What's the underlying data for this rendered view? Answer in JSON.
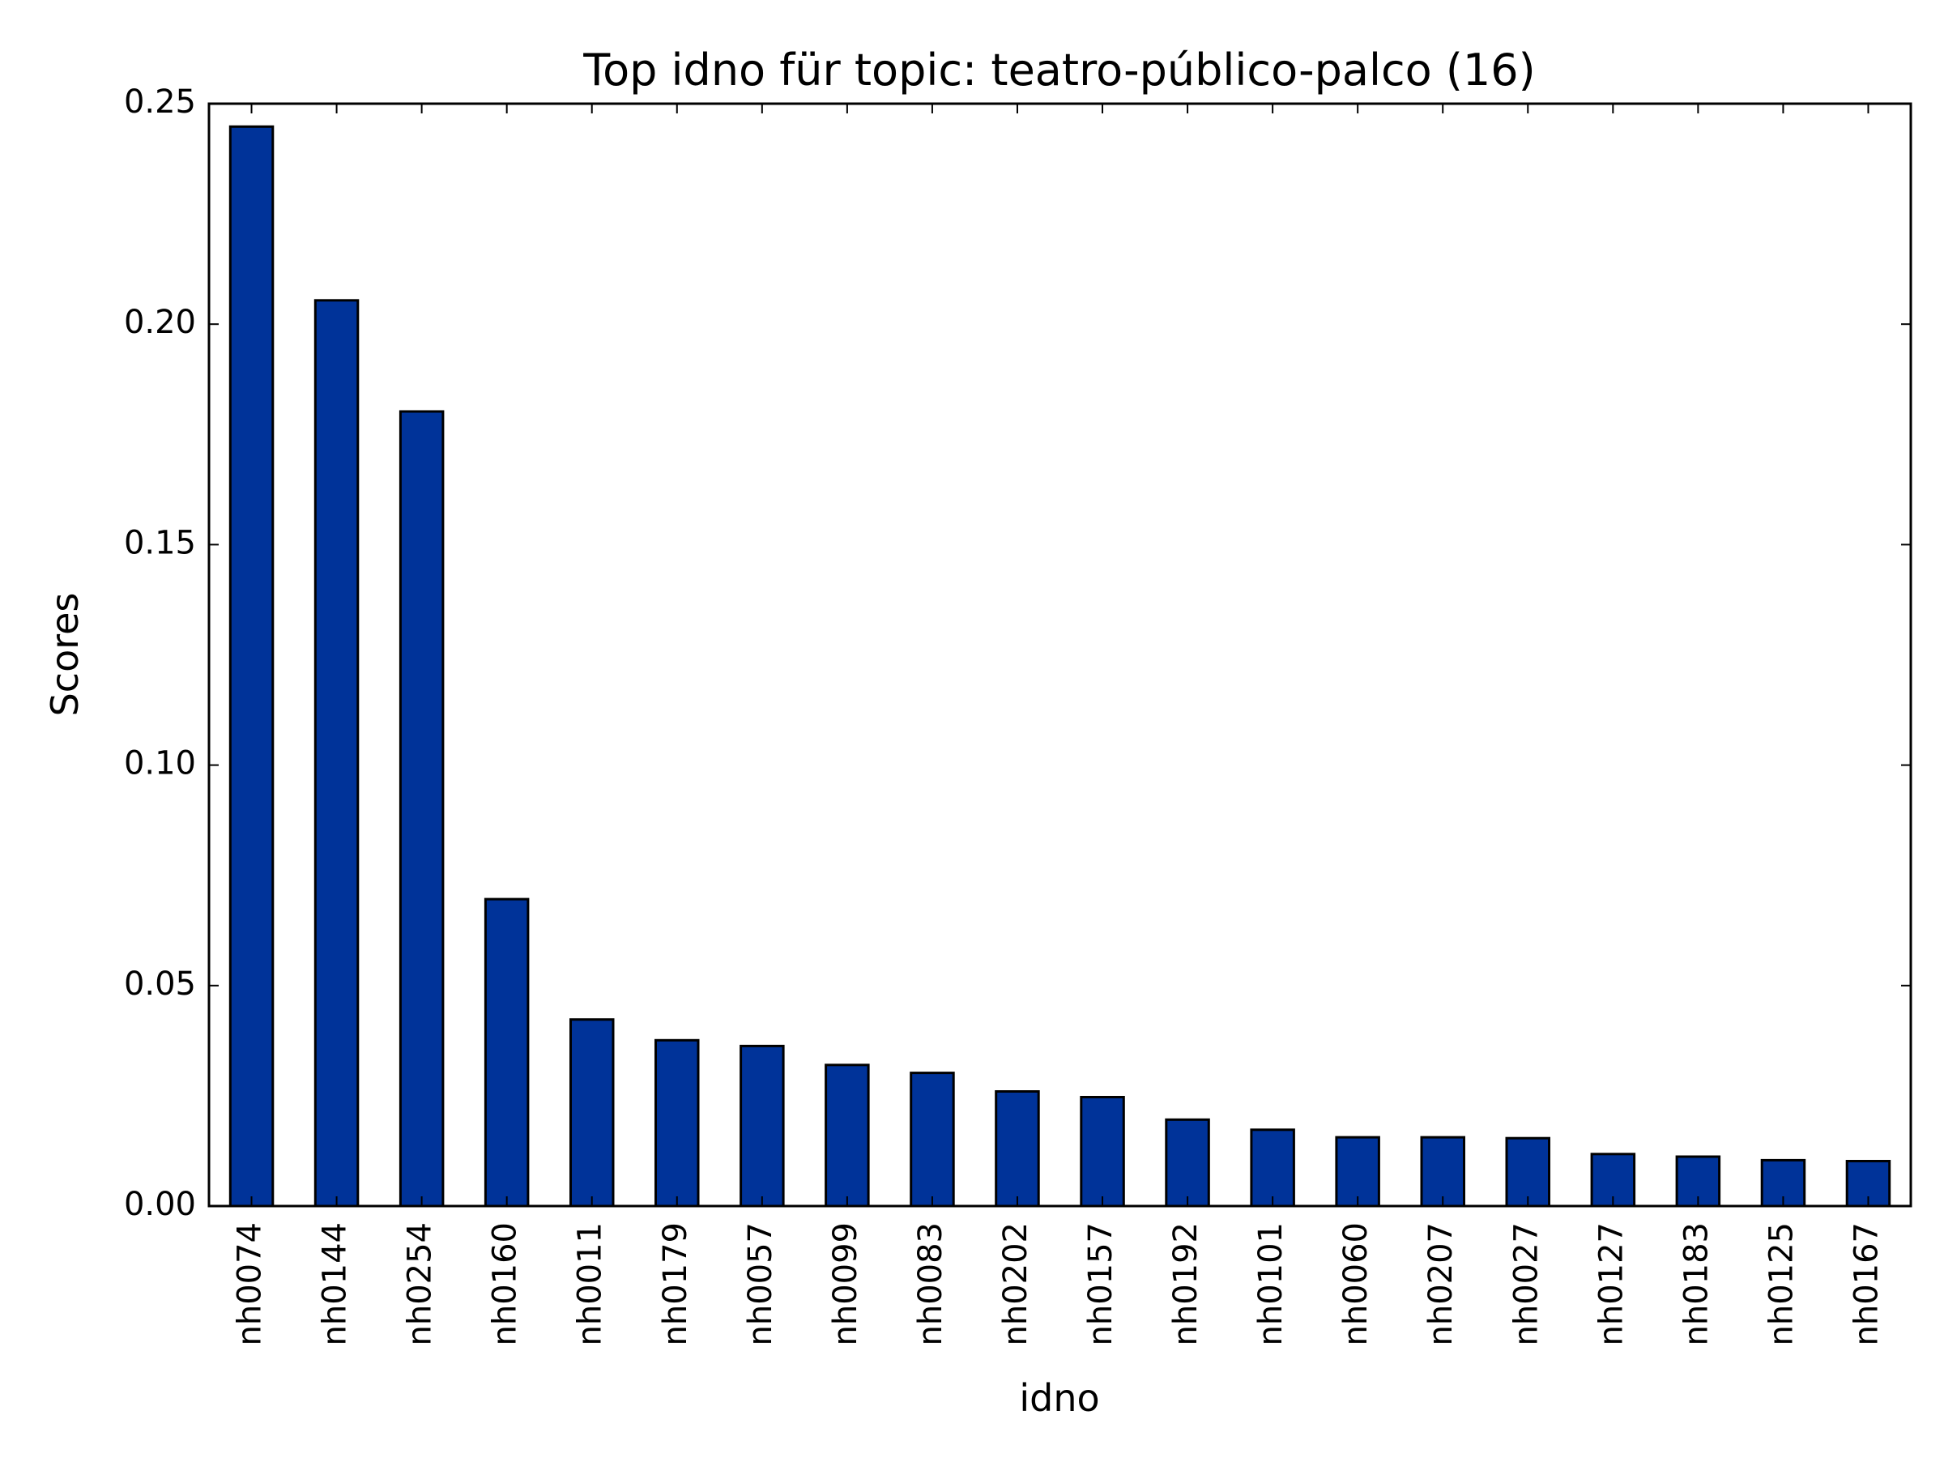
{
  "chart_data": {
    "type": "bar",
    "title": "Top idno für topic: teatro-público-palco (16)",
    "xlabel": "idno",
    "ylabel": "Scores",
    "ylim": [
      0,
      0.25
    ],
    "yticks": [
      "0.00",
      "0.05",
      "0.10",
      "0.15",
      "0.20",
      "0.25"
    ],
    "categories": [
      "nh0074",
      "nh0144",
      "nh0254",
      "nh0160",
      "nh0011",
      "nh0179",
      "nh0057",
      "nh0099",
      "nh0083",
      "nh0202",
      "nh0157",
      "nh0192",
      "nh0101",
      "nh0060",
      "nh0207",
      "nh0027",
      "nh0127",
      "nh0183",
      "nh0125",
      "nh0167"
    ],
    "values": [
      0.2448,
      0.2054,
      0.1802,
      0.0696,
      0.0423,
      0.0376,
      0.0363,
      0.032,
      0.0302,
      0.026,
      0.0247,
      0.0196,
      0.0173,
      0.0156,
      0.0156,
      0.0154,
      0.0118,
      0.0112,
      0.0104,
      0.0102
    ],
    "bar_color": "#003399",
    "grid": false,
    "legend": "none"
  }
}
